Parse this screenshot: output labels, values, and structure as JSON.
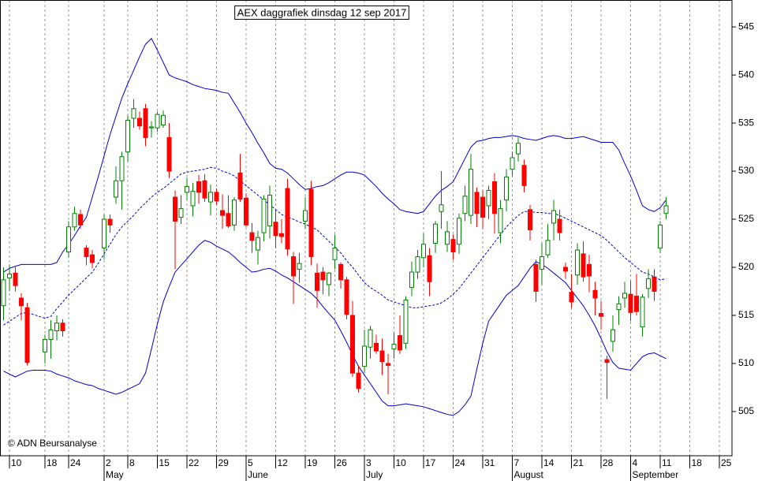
{
  "chart_data": {
    "type": "candlestick",
    "title": "AEX daggrafiek dinsdag 12 sep 2017",
    "annotation": "© ADN Beursanalyse",
    "categories": [
      null,
      "10",
      null,
      null,
      null,
      null,
      null,
      "18",
      null,
      null,
      null,
      "24",
      null,
      null,
      null,
      null,
      null,
      "2",
      null,
      null,
      null,
      "8",
      null,
      null,
      null,
      null,
      "15",
      null,
      null,
      null,
      null,
      "22",
      null,
      null,
      null,
      null,
      "29",
      null,
      null,
      null,
      null,
      "5",
      null,
      null,
      null,
      null,
      "12",
      null,
      null,
      null,
      null,
      "19",
      null,
      null,
      null,
      null,
      "26",
      null,
      null,
      null,
      null,
      "3",
      null,
      null,
      null,
      null,
      "10",
      null,
      null,
      null,
      null,
      "17",
      null,
      null,
      null,
      null,
      "24",
      null,
      null,
      null,
      null,
      "31",
      null,
      null,
      null,
      null,
      "7",
      null,
      null,
      null,
      null,
      "14",
      null,
      null,
      null,
      null,
      "21",
      null,
      null,
      null,
      null,
      "28",
      null,
      null,
      null,
      null,
      "4",
      null,
      null,
      null,
      null,
      "11",
      null,
      null,
      null,
      null,
      "18",
      null,
      null,
      null,
      null,
      "25",
      null
    ],
    "months": [
      "May",
      "June",
      "July",
      "August",
      "September"
    ],
    "ylim": [
      500.4,
      547.8
    ],
    "yticks": [
      505,
      510,
      515,
      520,
      525,
      530,
      535,
      540,
      545
    ],
    "grid": true,
    "up_color": "#008000",
    "down_color": "#ff0000",
    "series": {
      "open": [
        516,
        518.9,
        519.4,
        516.8,
        515.8,
        null,
        null,
        511.2,
        512.5,
        513.4,
        514.2,
        521.6,
        524.2,
        525.5,
        522,
        521.3,
        null,
        522,
        525,
        527.3,
        529,
        532,
        535.5,
        535.5,
        536.5,
        534.5,
        534.5,
        534.8,
        533.5,
        527.3,
        525.2,
        527.8,
        526.4,
        528.9,
        529,
        526.8,
        527.8,
        525.9,
        525.6,
        524.4,
        529.8,
        527.2,
        523.6,
        521.8,
        523.6,
        524.3,
        524.7,
        523.5,
        528.2,
        521.1,
        519.8,
        524.8,
        528.1,
        519.4,
        519.5,
        518.2,
        520.8,
        520.3,
        518.7,
        515,
        509,
        509.7,
        511.7,
        512.1,
        511.3,
        510,
        511.5,
        512.9,
        512.1,
        517.9,
        519.5,
        521,
        521.2,
        522.5,
        525.8,
        522.4,
        522.9,
        522.4,
        525.6,
        525.4,
        527.8,
        527.3,
        526.4,
        528.9,
        523.6,
        527,
        530.2,
        531.8,
        530.6,
        526,
        520.3,
        519.8,
        521.3,
        524.6,
        525,
        520,
        517.4,
        519.2,
        521.4,
        520.3,
        517.6,
        515.2,
        510.4,
        512.3,
        515.6,
        516.8,
        517.2,
        517,
        513.8,
        517.8,
        519,
        522,
        525.6,
        null,
        null,
        null,
        null,
        null,
        null,
        null,
        null,
        null,
        null
      ],
      "high": [
        520,
        520.3,
        520,
        517.3,
        516.3,
        null,
        null,
        513,
        514.5,
        515,
        514.6,
        524.8,
        526.3,
        526,
        522.3,
        521.8,
        null,
        525.5,
        525.5,
        530.5,
        532,
        535.8,
        537.5,
        536.2,
        537,
        535.2,
        536.2,
        536.3,
        535,
        528,
        527.5,
        529.3,
        528.8,
        529.6,
        529.7,
        528.6,
        528.2,
        527.6,
        527.5,
        527.3,
        531.8,
        527.7,
        524.6,
        523.8,
        527.5,
        528.5,
        526,
        525,
        529.2,
        521.6,
        521.5,
        527.3,
        529,
        520.4,
        520,
        519.5,
        523.4,
        520.5,
        519,
        516.5,
        509.8,
        513.5,
        513.9,
        513,
        512.6,
        511,
        513.2,
        515,
        517,
        520.6,
        521.8,
        523.5,
        522,
        524.8,
        530,
        524.8,
        523.4,
        525.6,
        528.5,
        531.8,
        528.3,
        528,
        528.5,
        529.8,
        527,
        530.2,
        532,
        533.5,
        531.2,
        526.5,
        520.8,
        522.5,
        524.5,
        527,
        526,
        520.5,
        519.3,
        522.5,
        522.7,
        521.3,
        518.5,
        516.5,
        510.8,
        515,
        517,
        518.5,
        518.6,
        519.3,
        517.2,
        519.8,
        519.8,
        524.8,
        527.3,
        null,
        null,
        null,
        null,
        null,
        null,
        null,
        null,
        null,
        null
      ],
      "low": [
        514.5,
        517.5,
        517.5,
        514.5,
        509.8,
        null,
        null,
        510,
        510.5,
        512.4,
        512.8,
        521,
        523.8,
        524,
        520.2,
        519.9,
        null,
        520.8,
        523.6,
        526.6,
        526,
        531,
        534.5,
        534.3,
        532.6,
        533.5,
        534.1,
        534.5,
        529.3,
        519.8,
        524.5,
        527,
        525.3,
        526.6,
        526.8,
        525.4,
        526.5,
        524,
        524.1,
        523.8,
        526.8,
        524.2,
        521.5,
        520.3,
        522.7,
        523,
        522,
        522.5,
        521.2,
        516.2,
        518.4,
        524,
        520.2,
        515.8,
        517.2,
        517,
        519.8,
        517.8,
        514.6,
        508.6,
        507,
        509,
        510.5,
        511,
        508.8,
        506.8,
        510.5,
        511,
        511.5,
        517,
        518.8,
        520,
        517,
        521.5,
        524,
        521.6,
        520.8,
        521.4,
        524.8,
        524.5,
        524.2,
        524,
        525,
        523.5,
        522.5,
        525.8,
        529.5,
        531,
        527.8,
        522.8,
        516.4,
        518.2,
        521,
        522.8,
        522.8,
        518.8,
        515.8,
        518.2,
        518.5,
        517.4,
        515,
        513.5,
        506.3,
        511.2,
        514,
        515.8,
        514.4,
        515,
        512.8,
        516.8,
        516.5,
        521.5,
        525,
        null,
        null,
        null,
        null,
        null,
        null,
        null,
        null,
        null,
        null
      ],
      "close": [
        518.7,
        519.3,
        518.1,
        516,
        510.1,
        null,
        null,
        512.5,
        513.5,
        514.2,
        513.4,
        524.2,
        525.6,
        524.4,
        521.1,
        520.5,
        null,
        525,
        524.4,
        529,
        531.5,
        535.3,
        536.5,
        534.7,
        533.5,
        534.6,
        535.9,
        535.8,
        530,
        524.8,
        526.1,
        528.4,
        527.9,
        527.8,
        527.2,
        527.8,
        526.9,
        525.4,
        524.3,
        527,
        527.1,
        524.4,
        522.8,
        523.1,
        527.1,
        527.5,
        523.3,
        523.2,
        521.9,
        519.1,
        520.4,
        525.9,
        521.1,
        517.6,
        518.7,
        519.4,
        522,
        518.7,
        515.1,
        509,
        507.4,
        511.8,
        513.5,
        511.3,
        510.2,
        509.8,
        512,
        511.4,
        516.6,
        519.5,
        521.1,
        522.4,
        518.5,
        524.5,
        526.5,
        523.7,
        521.6,
        525.1,
        527.4,
        530.2,
        525.6,
        525.2,
        528,
        525.6,
        526.1,
        529.4,
        531.4,
        532.9,
        528.5,
        523.9,
        517.5,
        521.1,
        522.8,
        525.9,
        523.6,
        519.6,
        516.4,
        521.8,
        519,
        519.1,
        516.8,
        514.9,
        510.1,
        513.5,
        516.2,
        517.3,
        515.3,
        515.4,
        516.9,
        518.8,
        517.5,
        524.4,
        526.4,
        null,
        null,
        null,
        null,
        null,
        null,
        null,
        null,
        null,
        null
      ]
    },
    "bands": {
      "color": "#0000cc",
      "upper": [
        519.5,
        519.9,
        520.1,
        520.3,
        520.3,
        520.3,
        520.3,
        520.3,
        520.3,
        520.5,
        521.6,
        522.4,
        523.3,
        524.3,
        525.2,
        527.3,
        529.4,
        531.6,
        533.8,
        535.7,
        537.6,
        539.1,
        540.5,
        541.9,
        543.2,
        543.8,
        542.6,
        541.3,
        540,
        539.7,
        539.5,
        539.3,
        539,
        538.8,
        538.6,
        538.5,
        538.4,
        538.2,
        538.1,
        537.1,
        536.1,
        535,
        534,
        532.9,
        531.9,
        530.8,
        530.3,
        530.2,
        529.8,
        529.2,
        528.6,
        528.1,
        528.2,
        528.4,
        528.5,
        528.8,
        529.2,
        529.6,
        529.9,
        529.9,
        529.8,
        529.6,
        529,
        528.4,
        527.7,
        527.1,
        526.6,
        526,
        525.8,
        525.7,
        525.6,
        525.8,
        526.6,
        527.4,
        528,
        528.4,
        528.9,
        530.1,
        531.3,
        532.5,
        533.1,
        533.2,
        533.4,
        533.5,
        533.5,
        533.6,
        533.7,
        533.6,
        533.4,
        533.3,
        533.2,
        533.4,
        533.6,
        533.7,
        533.6,
        533.4,
        533.4,
        533.5,
        533.6,
        533.4,
        533.2,
        533,
        533,
        533,
        532.2,
        530.8,
        529.5,
        528,
        526.4,
        526,
        525.8,
        526.2,
        527,
        null,
        null,
        null,
        null,
        null,
        null,
        null,
        null,
        null,
        null
      ],
      "middle": [
        514,
        514.4,
        514.8,
        515.2,
        515.3,
        515.1,
        514.9,
        514.7,
        514.9,
        515.7,
        516.4,
        517.1,
        517.7,
        518.3,
        518.9,
        519.5,
        520.4,
        521.4,
        522.4,
        523.4,
        524.2,
        524.8,
        525.4,
        526.1,
        526.7,
        527.3,
        527.8,
        528.2,
        528.7,
        529.2,
        529.7,
        529.9,
        530,
        530.1,
        530.2,
        530.4,
        530.3,
        530,
        529.8,
        529.5,
        529,
        528.5,
        528,
        527.5,
        527,
        526.5,
        526,
        525.5,
        525.2,
        525,
        524.7,
        524.5,
        524.2,
        523.9,
        523.3,
        522.7,
        522.1,
        521.5,
        520.7,
        520,
        519.2,
        518.4,
        517.9,
        517.5,
        517.1,
        516.6,
        516.4,
        516.2,
        516,
        515.8,
        515.8,
        515.9,
        516,
        516.1,
        516.3,
        516.7,
        517.2,
        517.8,
        518.6,
        519.4,
        520.2,
        521,
        521.8,
        522.6,
        523.4,
        524.2,
        524.8,
        525.4,
        525.8,
        525.8,
        525.7,
        525.7,
        525.6,
        525.6,
        525.4,
        525.1,
        524.8,
        524.5,
        524.2,
        523.9,
        523.6,
        523.3,
        522.8,
        522.2,
        521.6,
        521,
        520.5,
        520,
        519.5,
        519.3,
        519,
        518.7,
        518.8,
        null,
        null,
        null,
        null,
        null,
        null,
        null,
        null,
        null,
        null
      ],
      "lower": [
        509.2,
        508.9,
        508.6,
        508.9,
        509.2,
        509.3,
        509.3,
        509.3,
        509.2,
        508.9,
        508.7,
        508.5,
        508.2,
        508,
        507.8,
        507.7,
        507.4,
        507.2,
        507,
        506.8,
        507,
        507.3,
        507.6,
        507.9,
        509,
        511.5,
        514.1,
        516.4,
        518,
        519.5,
        520.2,
        520.9,
        521.6,
        522.3,
        522.8,
        522.6,
        522.2,
        521.9,
        521.6,
        521.1,
        520.5,
        520,
        519.5,
        519.6,
        519.8,
        519.9,
        519.6,
        519.2,
        518.9,
        518.5,
        518.1,
        517.7,
        517.3,
        516.7,
        515.9,
        515.2,
        514.5,
        513.4,
        512.2,
        510.9,
        509.7,
        508.8,
        507.9,
        507,
        506.1,
        505.6,
        505.6,
        505.7,
        505.8,
        505.7,
        505.6,
        505.5,
        505.3,
        505.1,
        504.9,
        504.7,
        504.6,
        505,
        505.7,
        506.6,
        509.4,
        512.1,
        514.4,
        515.3,
        516.2,
        517.1,
        517.6,
        518.1,
        519,
        519.9,
        520.6,
        520.3,
        519.9,
        519.4,
        518.9,
        518.4,
        517.6,
        516.8,
        516,
        515,
        513.9,
        512.6,
        511.2,
        510.1,
        509.5,
        509.4,
        509.3,
        510,
        510.7,
        511,
        511.1,
        510.8,
        510.5,
        null,
        null,
        null,
        null,
        null,
        null,
        null,
        null,
        null,
        null
      ]
    }
  }
}
